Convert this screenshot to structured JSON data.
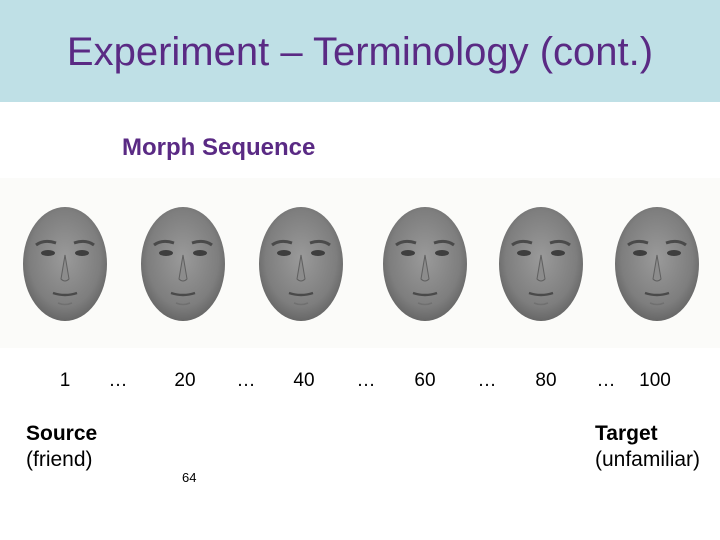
{
  "slide": {
    "title": "Experiment – Terminology (cont.)",
    "subtitle": "Morph Sequence",
    "page_number": "64"
  },
  "sequence": {
    "labels": [
      "1",
      "…",
      "20",
      "…",
      "40",
      "…",
      "60",
      "…",
      "80",
      "…",
      "100"
    ]
  },
  "source": {
    "title": "Source",
    "note": "(friend)"
  },
  "target": {
    "title": "Target",
    "note": "(unfamiliar)"
  },
  "colors": {
    "title_bar": "#bfe0e6",
    "title_text": "#5a2a84"
  }
}
